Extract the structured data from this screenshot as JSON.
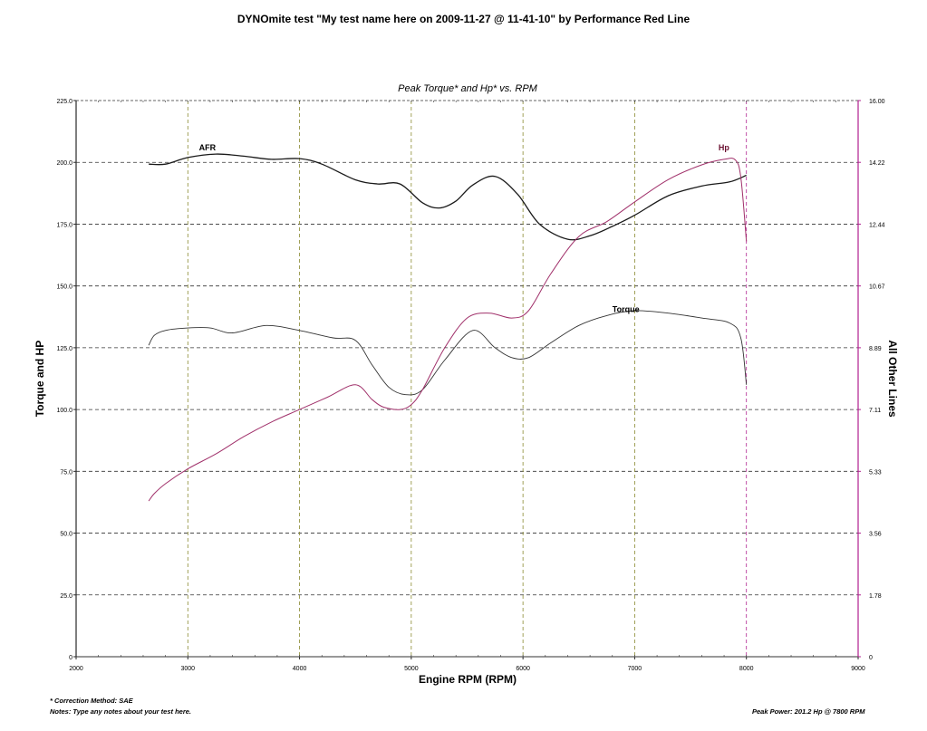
{
  "header": {
    "title": "DYNOmite test \"My test name here on 2009-11-27 @ 11-41-10\" by Performance Red Line"
  },
  "footer": {
    "correction_method": "* Correction Method: SAE",
    "notes": "Notes: Type any notes about your test here.",
    "peak_power": "Peak Power: 201.2 Hp @ 7800 RPM"
  },
  "colors": {
    "afr": "#1a1a1a",
    "torque": "#333333",
    "hp": "#a0306a",
    "grid": "#333333",
    "axis_left": "#2a2a2a",
    "axis_right": "#b02090",
    "vert_grid_tint": "#8a8a30"
  },
  "chart_data": {
    "type": "line",
    "title": "Peak Torque* and Hp* vs. RPM",
    "xlabel": "Engine RPM (RPM)",
    "ylabel_left": "Torque and HP",
    "ylabel_right": "All Other Lines",
    "xlim": [
      2000,
      9000
    ],
    "ylim_left": [
      0,
      225
    ],
    "ylim_right": [
      0,
      16
    ],
    "x_ticks": [
      "2000",
      "3000",
      "4000",
      "5000",
      "6000",
      "7000",
      "8000",
      "9000"
    ],
    "y_left_ticks": [
      "0",
      "25.0",
      "50.0",
      "75.0",
      "100.0",
      "125.0",
      "150.0",
      "175.0",
      "200.0",
      "225.0"
    ],
    "y_right_ticks": [
      "0",
      "1.78",
      "3.56",
      "5.33",
      "7.11",
      "8.89",
      "10.67",
      "12.44",
      "14.22",
      "16.00"
    ],
    "grid": true,
    "series": [
      {
        "name": "AFR",
        "axis": "right",
        "x": [
          2650,
          2800,
          3000,
          3250,
          3500,
          3750,
          4000,
          4200,
          4500,
          4700,
          4900,
          5100,
          5250,
          5400,
          5550,
          5750,
          5950,
          6150,
          6400,
          6600,
          6800,
          7000,
          7300,
          7600,
          7850,
          8000
        ],
        "y": [
          14.17,
          14.17,
          14.36,
          14.46,
          14.4,
          14.31,
          14.33,
          14.17,
          13.72,
          13.6,
          13.6,
          13.06,
          12.91,
          13.11,
          13.57,
          13.82,
          13.31,
          12.44,
          12.01,
          12.11,
          12.38,
          12.7,
          13.26,
          13.54,
          13.66,
          13.85
        ]
      },
      {
        "name": "Torque",
        "axis": "left",
        "x": [
          2650,
          2700,
          2800,
          3000,
          3200,
          3400,
          3700,
          4000,
          4300,
          4500,
          4650,
          4800,
          4950,
          5100,
          5300,
          5550,
          5750,
          5900,
          6050,
          6250,
          6500,
          6750,
          7000,
          7300,
          7600,
          7850,
          7950,
          8000
        ],
        "y": [
          126,
          130,
          132,
          133,
          133,
          131,
          134,
          132,
          129,
          128,
          118,
          109,
          106,
          108,
          120,
          132,
          125,
          121,
          121,
          127,
          134,
          138,
          140,
          139,
          137,
          135,
          129,
          110
        ]
      },
      {
        "name": "Hp",
        "axis": "left",
        "x": [
          2650,
          2700,
          2800,
          3000,
          3250,
          3500,
          3750,
          4000,
          4250,
          4500,
          4650,
          4750,
          4900,
          5000,
          5100,
          5300,
          5500,
          5700,
          5900,
          6050,
          6250,
          6500,
          6750,
          7000,
          7300,
          7600,
          7800,
          7900,
          7950,
          8000
        ],
        "y": [
          63,
          66,
          70,
          76,
          82,
          89,
          95,
          100,
          105,
          110,
          104,
          101,
          100,
          102,
          108,
          125,
          137,
          139,
          137,
          140,
          155,
          170,
          176,
          184,
          193,
          199,
          201.2,
          201,
          194,
          168
        ]
      }
    ]
  }
}
